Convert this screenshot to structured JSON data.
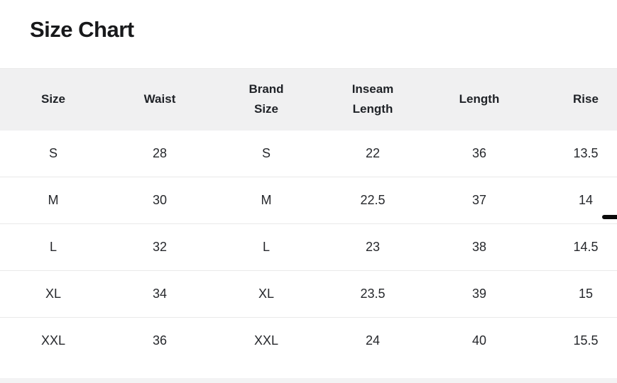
{
  "page": {
    "title": "Size Chart"
  },
  "table": {
    "columns": [
      {
        "id": "size",
        "label": "Size"
      },
      {
        "id": "waist",
        "label": "Waist"
      },
      {
        "id": "brand-size",
        "label": "Brand\nSize"
      },
      {
        "id": "inseam-length",
        "label": "Inseam\nLength"
      },
      {
        "id": "length",
        "label": "Length"
      },
      {
        "id": "rise",
        "label": "Rise"
      }
    ],
    "rows": [
      [
        "S",
        "28",
        "S",
        "22",
        "36",
        "13.5"
      ],
      [
        "M",
        "30",
        "M",
        "22.5",
        "37",
        "14"
      ],
      [
        "L",
        "32",
        "L",
        "23",
        "38",
        "14.5"
      ],
      [
        "XL",
        "34",
        "XL",
        "23.5",
        "39",
        "15"
      ],
      [
        "XXL",
        "36",
        "XXL",
        "24",
        "40",
        "15.5"
      ]
    ]
  },
  "colors": {
    "header_bg": "#f0f0f1",
    "row_border": "#e9e9e9",
    "text": "#26282c",
    "header_text": "#1f2227",
    "title": "#18191b",
    "band_bg": "#f3f3f4",
    "indicator": "#0a0a0a"
  }
}
